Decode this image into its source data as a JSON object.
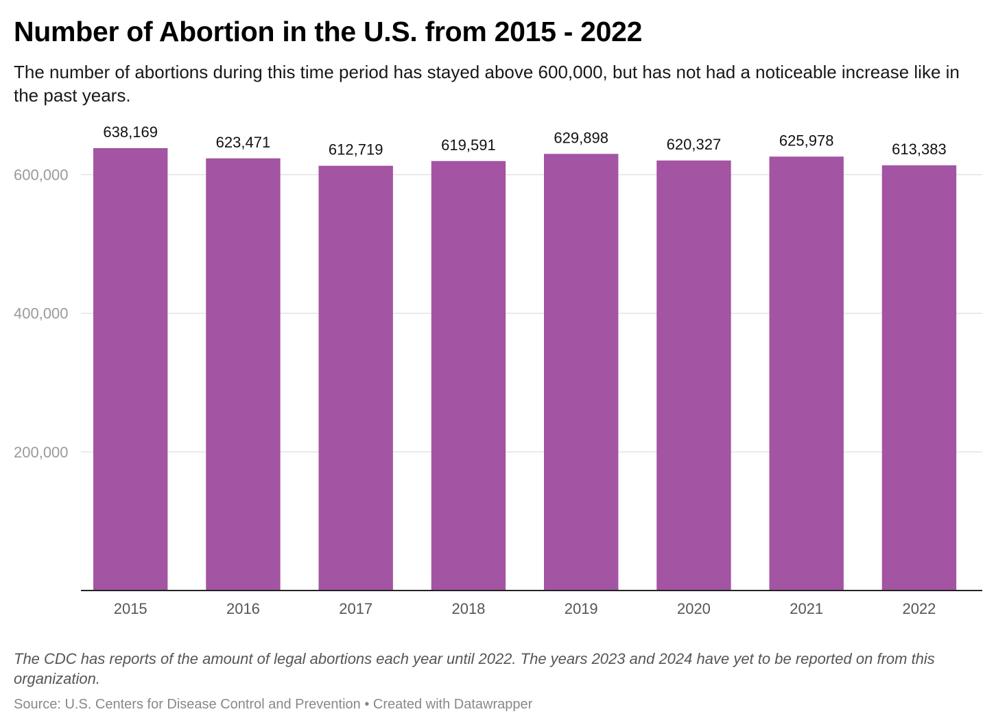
{
  "chart_data": {
    "type": "bar",
    "title": "Number of Abortion in the U.S. from 2015 - 2022",
    "subtitle": "The number of abortions during this time period has stayed above 600,000, but has not had a noticeable increase like in the past years.",
    "categories": [
      "2015",
      "2016",
      "2017",
      "2018",
      "2019",
      "2020",
      "2021",
      "2022"
    ],
    "values": [
      638169,
      623471,
      612719,
      619591,
      629898,
      620327,
      625978,
      613383
    ],
    "value_labels": [
      "638,169",
      "623,471",
      "612,719",
      "619,591",
      "629,898",
      "620,327",
      "625,978",
      "613,383"
    ],
    "xlabel": "",
    "ylabel": "",
    "ylim": [
      0,
      638169
    ],
    "yticks": [
      200000,
      400000,
      600000
    ],
    "ytick_labels": [
      "200,000",
      "400,000",
      "600,000"
    ],
    "grid": true,
    "legend": "none",
    "bar_color": "#a354a2"
  },
  "footer": {
    "notes": "The CDC has reports of the amount of legal abortions each year until 2022. The years 2023 and 2024 have yet to be reported on from this organization.",
    "source": "Source: U.S. Centers for Disease Control and Prevention • Created with Datawrapper"
  }
}
